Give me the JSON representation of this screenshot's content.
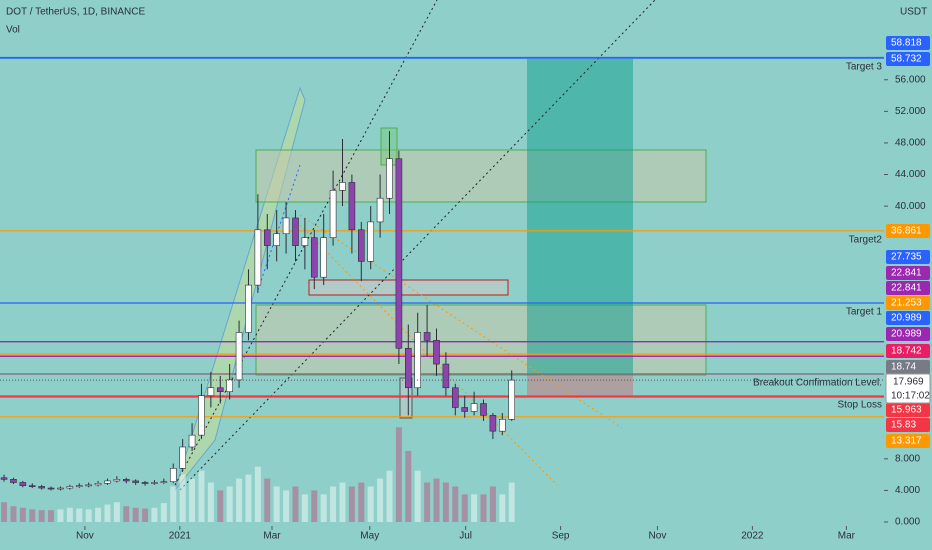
{
  "chart_data": {
    "type": "candlestick",
    "title": "DOT / TetherUS, 1D, BINANCE",
    "indicator": "Vol",
    "y_unit": "USDT",
    "up_color": "#ffffff",
    "down_color": "#8e44ad",
    "volume_up_color": "rgba(255,255,255,0.45)",
    "volume_down_color": "rgba(190,70,120,0.45)",
    "open": [
      5.6,
      5.4,
      5.0,
      4.6,
      4.5,
      4.3,
      4.2,
      4.3,
      4.5,
      4.6,
      4.7,
      4.9,
      5.2,
      5.4,
      5.2,
      5.0,
      4.9,
      5.0,
      5.1,
      6.8,
      9.5,
      11,
      16,
      17,
      16.5,
      18,
      24,
      30,
      37,
      35,
      36.5,
      38.5,
      35,
      36,
      31,
      36,
      42,
      43,
      37,
      33,
      38,
      41,
      46,
      22,
      17,
      24,
      23,
      20,
      17,
      14.5,
      14,
      15,
      13.5,
      11.5,
      13
    ],
    "high": [
      6.0,
      5.6,
      5.2,
      4.9,
      4.7,
      4.5,
      4.5,
      4.7,
      4.9,
      5.0,
      5.2,
      5.5,
      5.8,
      5.6,
      5.4,
      5.2,
      5.3,
      5.5,
      7.4,
      10.5,
      12.5,
      17.5,
      19,
      18.5,
      20,
      25.5,
      32,
      41.5,
      39,
      39.5,
      40.5,
      39.5,
      38.5,
      37,
      39,
      44.5,
      48.5,
      44,
      38,
      40,
      44,
      49.5,
      47,
      25,
      26.5,
      27.5,
      24.5,
      21.5,
      17.5,
      16,
      16.5,
      15.5,
      13.8,
      13.8,
      19.2
    ],
    "low": [
      5.1,
      4.8,
      4.4,
      4.3,
      4.1,
      4.0,
      4.0,
      4.1,
      4.3,
      4.4,
      4.5,
      4.7,
      5.0,
      4.9,
      4.7,
      4.6,
      4.7,
      4.8,
      4.9,
      6.5,
      9,
      10.5,
      14.5,
      15,
      15.5,
      17,
      23,
      29,
      32,
      33,
      34,
      33,
      32,
      29.5,
      30,
      35,
      40,
      34,
      30.5,
      32,
      36,
      39,
      20,
      13.5,
      16,
      21,
      18.5,
      16,
      13.5,
      13.2,
      13.5,
      12.8,
      10.5,
      11,
      12.8
    ],
    "close": [
      5.4,
      5.0,
      4.6,
      4.5,
      4.3,
      4.2,
      4.3,
      4.5,
      4.6,
      4.7,
      4.9,
      5.2,
      5.4,
      5.2,
      5.0,
      4.9,
      5.0,
      5.1,
      6.8,
      9.5,
      11,
      16,
      17,
      16.5,
      18,
      24,
      30,
      37,
      35,
      36.5,
      38.5,
      35,
      36,
      31,
      36,
      42,
      43,
      37,
      33,
      38,
      41,
      46,
      22,
      17,
      24,
      23,
      20,
      17,
      14.5,
      14,
      15,
      13.5,
      11.5,
      13,
      17.969
    ],
    "volume": [
      2.5,
      2,
      1.8,
      1.6,
      1.5,
      1.5,
      1.6,
      1.8,
      1.7,
      1.6,
      1.8,
      2.2,
      2.5,
      2,
      1.8,
      1.7,
      1.8,
      2.4,
      4.5,
      6,
      5.5,
      6.5,
      5,
      4,
      4.5,
      5.5,
      6,
      7,
      5.5,
      4.5,
      4,
      4.5,
      3.5,
      4,
      3.5,
      4.5,
      5,
      4.5,
      5,
      4.5,
      5.5,
      6.5,
      12,
      9,
      6.5,
      5,
      5.5,
      5,
      4.5,
      3.5,
      3.5,
      3.5,
      4.5,
      3.5,
      5
    ],
    "xlim": [
      -0.43,
      93.6
    ],
    "xticks": [
      {
        "value": 8.6,
        "label": "Nov"
      },
      {
        "value": 18.7,
        "label": "2021"
      },
      {
        "value": 28.5,
        "label": "Mar"
      },
      {
        "value": 38.9,
        "label": "May"
      },
      {
        "value": 49.1,
        "label": "Jul"
      },
      {
        "value": 59.2,
        "label": "Sep"
      },
      {
        "value": 69.5,
        "label": "Nov"
      },
      {
        "value": 79.6,
        "label": "2022"
      },
      {
        "value": 89.6,
        "label": "Mar"
      }
    ],
    "ylim": [
      0,
      66.1
    ],
    "yticks": [
      {
        "value": 0,
        "label": "0.000"
      },
      {
        "value": 4,
        "label": "4.000"
      },
      {
        "value": 8,
        "label": "8.000"
      },
      {
        "value": 40,
        "label": "40.000"
      },
      {
        "value": 44,
        "label": "44.000"
      },
      {
        "value": 48,
        "label": "48.000"
      },
      {
        "value": 52,
        "label": "52.000"
      },
      {
        "value": 56,
        "label": "56.000"
      }
    ],
    "price_labels": [
      {
        "value": 58.818,
        "color": "#2962ff"
      },
      {
        "value": 58.732,
        "color": "#2962ff"
      },
      {
        "value": 36.861,
        "color": "#ff9800"
      },
      {
        "value": 27.735,
        "color": "#2962ff"
      },
      {
        "value": 22.841,
        "color": "#9c27b0"
      },
      {
        "value": 22.841,
        "color": "#9c27b0"
      },
      {
        "value": 21.253,
        "color": "#ff9800"
      },
      {
        "value": 20.989,
        "color": "#2962ff"
      },
      {
        "value": 20.989,
        "color": "#9c27b0"
      },
      {
        "value": 18.742,
        "color": "#e91e63"
      },
      {
        "value": 18.74,
        "color": "#787b86"
      },
      {
        "value": 15.963,
        "color": "#f23645"
      },
      {
        "value": 15.83,
        "color": "#f23645"
      },
      {
        "value": 13.317,
        "color": "#ff9800"
      }
    ],
    "current_time": "10:17:02",
    "annotations": [
      {
        "text": "Target 3",
        "color": "#2962ff"
      },
      {
        "text": "Target2",
        "color": "#ff9800"
      },
      {
        "text": "Target 1",
        "color": "#2962ff"
      },
      {
        "text": "Breakout Confirmation Level.",
        "color": "#f23645"
      },
      {
        "text": "Stop Loss",
        "color": "#ff9800"
      }
    ]
  }
}
